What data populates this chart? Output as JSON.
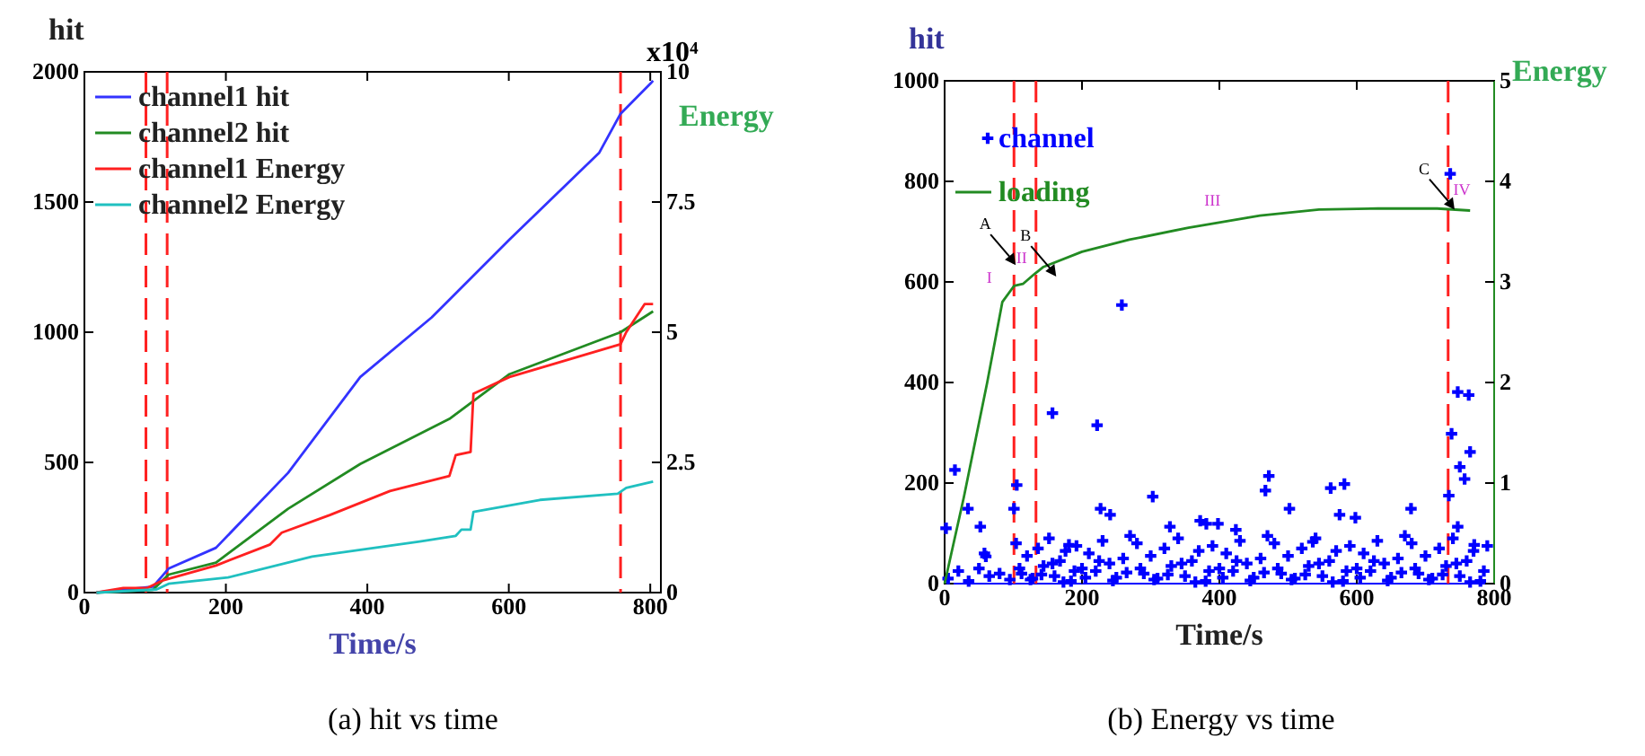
{
  "chart_data": [
    {
      "type": "line",
      "title": "(a) hit vs time",
      "xlabel": "Time/s",
      "ylabel": "hit",
      "y2label": "Energy",
      "xlim": [
        0,
        815
      ],
      "xticks": [
        0,
        200,
        400,
        600,
        800
      ],
      "ylim": [
        0,
        2000
      ],
      "yticks": [
        0,
        500,
        1000,
        1500,
        2000
      ],
      "y2lim": [
        0,
        10
      ],
      "y2ticks": [
        0,
        2.5,
        5,
        7.5,
        10
      ],
      "legend": "top left",
      "annotations": [
        "x10⁴"
      ],
      "ref_lines": [
        {
          "axis": "x",
          "value": 87,
          "color": "#ff2020",
          "line_style": "dashed"
        },
        {
          "axis": "x",
          "value": 117,
          "color": "#ff2020",
          "line_style": "dashed"
        },
        {
          "axis": "x",
          "value": 758,
          "color": "#ff2020",
          "line_style": "dashed"
        }
      ],
      "series": [
        {
          "name": "channel1 hit",
          "color": "#3333ff",
          "x": [
            17,
            97,
            119,
            186,
            288,
            390,
            491,
            601,
            728,
            758,
            800,
            804
          ],
          "values": [
            0,
            23,
            92,
            172,
            460,
            828,
            1057,
            1356,
            1690,
            1839,
            1954,
            1966
          ]
        },
        {
          "name": "channel2 hit",
          "color": "#228b22",
          "x": [
            17,
            97,
            119,
            186,
            288,
            390,
            516,
            601,
            758,
            804
          ],
          "values": [
            0,
            11,
            69,
            115,
            322,
            494,
            667,
            839,
            1000,
            1080
          ]
        },
        {
          "name": "channel1 Energy",
          "color": "#ff2020",
          "axis": "y2",
          "x": [
            17,
            55,
            89,
            110,
            186,
            262,
            279,
            347,
            432,
            516,
            525,
            546,
            550,
            601,
            758,
            766,
            792,
            804
          ],
          "values": [
            0,
            0.09,
            0.09,
            0.23,
            0.52,
            0.92,
            1.15,
            1.49,
            1.95,
            2.24,
            2.64,
            2.7,
            3.82,
            4.14,
            4.77,
            5.0,
            5.54,
            5.54
          ]
        },
        {
          "name": "channel2 Energy",
          "color": "#20c0c0",
          "axis": "y2",
          "x": [
            17,
            102,
            119,
            203,
            322,
            474,
            525,
            533,
            546,
            550,
            644,
            754,
            766,
            804
          ],
          "values": [
            0,
            0.06,
            0.17,
            0.29,
            0.69,
            0.98,
            1.09,
            1.21,
            1.21,
            1.55,
            1.78,
            1.9,
            2.01,
            2.13
          ]
        }
      ]
    },
    {
      "type": "scatter",
      "title": "(b) Energy vs time",
      "xlabel": "Time/s",
      "ylabel": "hit",
      "y2label": "Energy",
      "xlim": [
        0,
        800
      ],
      "xticks": [
        0,
        200,
        400,
        600,
        800
      ],
      "ylim": [
        0,
        1000
      ],
      "yticks": [
        0,
        200,
        400,
        600,
        800,
        1000
      ],
      "y2lim": [
        0,
        5
      ],
      "y2ticks": [
        0,
        1,
        2,
        3,
        4,
        5
      ],
      "legend": "top left",
      "annotations": [
        "A",
        "B",
        "C",
        "I",
        "II",
        "III",
        "IV"
      ],
      "ref_lines": [
        {
          "axis": "x",
          "value": 101,
          "color": "#ff2020",
          "line_style": "dashed"
        },
        {
          "axis": "x",
          "value": 133,
          "color": "#ff2020",
          "line_style": "dashed"
        },
        {
          "axis": "x",
          "value": 733,
          "color": "#ff2020",
          "line_style": "dashed"
        }
      ],
      "series": [
        {
          "name": "channel",
          "color": "#0000ff",
          "marker": "cross",
          "x": [
            2,
            15,
            34,
            52,
            58,
            60,
            105,
            101,
            157,
            181,
            222,
            227,
            241,
            258,
            303,
            328,
            372,
            381,
            398,
            424,
            467,
            472,
            502,
            536,
            562,
            582,
            575,
            598,
            679,
            734,
            736,
            747,
            763,
            738,
            765,
            750,
            757,
            747,
            771,
            5,
            20,
            35,
            50,
            65,
            80,
            95,
            104,
            112,
            120,
            128,
            136,
            144,
            152,
            160,
            168,
            176,
            184,
            192,
            200,
            210,
            220,
            230,
            240,
            250,
            260,
            270,
            280,
            290,
            300,
            310,
            320,
            330,
            340,
            350,
            360,
            370,
            380,
            390,
            400,
            410,
            420,
            430,
            440,
            450,
            460,
            470,
            480,
            490,
            500,
            510,
            520,
            530,
            540,
            550,
            560,
            570,
            580,
            590,
            600,
            610,
            620,
            630,
            640,
            650,
            660,
            670,
            680,
            690,
            700,
            710,
            720,
            730,
            740,
            750,
            760,
            770,
            780,
            790,
            109,
            125,
            141,
            157,
            173,
            189,
            205,
            225,
            245,
            265,
            285,
            305,
            325,
            345,
            365,
            385,
            405,
            425,
            445,
            465,
            485,
            505,
            525,
            545,
            565,
            585,
            605,
            625,
            645,
            665,
            685,
            705,
            725,
            745,
            765,
            785
          ],
          "values": [
            110,
            226,
            149,
            113,
            60,
            54,
            196,
            149,
            339,
            77,
            315,
            149,
            137,
            554,
            173,
            113,
            125,
            119,
            119,
            107,
            185,
            214,
            149,
            83,
            190,
            198,
            137,
            131,
            149,
            175,
            815,
            381,
            375,
            298,
            262,
            232,
            208,
            113,
            77,
            10,
            25,
            5,
            30,
            15,
            20,
            8,
            80,
            20,
            55,
            10,
            70,
            35,
            90,
            15,
            45,
            65,
            5,
            75,
            30,
            60,
            25,
            85,
            40,
            12,
            50,
            95,
            80,
            20,
            55,
            10,
            70,
            35,
            90,
            15,
            45,
            65,
            5,
            75,
            30,
            60,
            25,
            85,
            40,
            12,
            50,
            95,
            80,
            20,
            55,
            10,
            70,
            35,
            90,
            15,
            45,
            65,
            5,
            75,
            30,
            60,
            25,
            85,
            40,
            12,
            50,
            95,
            80,
            20,
            55,
            10,
            70,
            35,
            90,
            15,
            45,
            65,
            5,
            75,
            30,
            8,
            18,
            40,
            3,
            25,
            12,
            45,
            6,
            22,
            30,
            8,
            18,
            40,
            3,
            25,
            12,
            45,
            6,
            22,
            30,
            8,
            18,
            40,
            3,
            25,
            12,
            45,
            6,
            22,
            30,
            8,
            18,
            40,
            3,
            25
          ]
        },
        {
          "name": "loading",
          "color": "#228b22",
          "type": "line",
          "axis": "y2",
          "x": [
            0,
            28,
            62,
            84,
            101,
            114,
            131,
            144,
            200,
            269,
            355,
            459,
            545,
            631,
            717,
            765
          ],
          "values": [
            0,
            0.86,
            2.0,
            2.8,
            2.96,
            2.98,
            3.08,
            3.15,
            3.3,
            3.42,
            3.54,
            3.66,
            3.72,
            3.73,
            3.73,
            3.71
          ]
        }
      ]
    }
  ]
}
